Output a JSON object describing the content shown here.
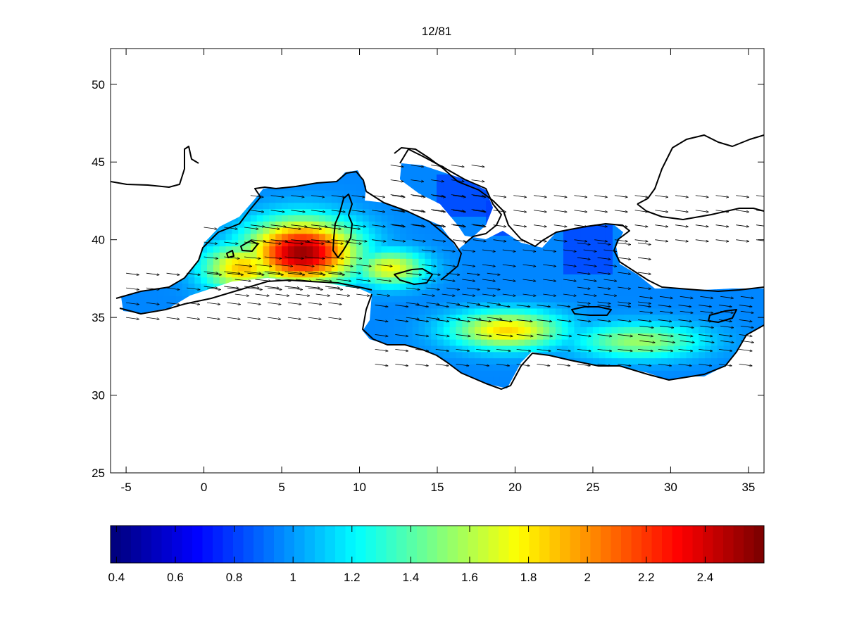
{
  "map": {
    "title": "12/81",
    "x_ticks": [
      "-5",
      "0",
      "5",
      "10",
      "15",
      "20",
      "25",
      "30",
      "35"
    ],
    "x_tick_values": [
      -5,
      0,
      5,
      10,
      15,
      20,
      25,
      30,
      35
    ],
    "y_ticks": [
      "25",
      "30",
      "35",
      "40",
      "45",
      "50"
    ],
    "y_tick_values": [
      25,
      30,
      35,
      40,
      45,
      50
    ],
    "xlim": [
      -6,
      36
    ],
    "ylim": [
      25,
      52.3
    ],
    "field_direction": "eastward",
    "hotspots": [
      {
        "lon": 6.3,
        "lat": 39.2,
        "value": 2.55,
        "sx": 3.4,
        "sy": 2.0
      },
      {
        "lon": 2.5,
        "lat": 38.2,
        "value": 1.9,
        "sx": 2.5,
        "sy": 1.5
      },
      {
        "lon": 19.5,
        "lat": 34.2,
        "value": 1.85,
        "sx": 3.5,
        "sy": 1.2
      },
      {
        "lon": 12.0,
        "lat": 38.2,
        "value": 1.75,
        "sx": 2.2,
        "sy": 1.1
      },
      {
        "lon": 28.0,
        "lat": 33.5,
        "value": 1.55,
        "sx": 4.0,
        "sy": 1.1
      }
    ]
  },
  "colorbar": {
    "ticks": [
      "0.4",
      "0.6",
      "0.8",
      "1",
      "1.2",
      "1.4",
      "1.6",
      "1.8",
      "2",
      "2.2",
      "2.4"
    ],
    "tick_values": [
      0.4,
      0.6,
      0.8,
      1.0,
      1.2,
      1.4,
      1.6,
      1.8,
      2.0,
      2.2,
      2.4
    ],
    "range": [
      0.38,
      2.6
    ],
    "colormap": "jet"
  }
}
